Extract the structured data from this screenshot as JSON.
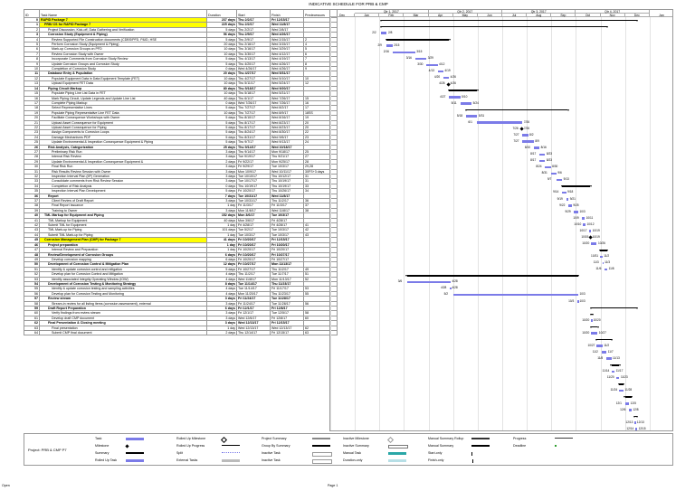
{
  "page_title": "INDICATIVE SCHEDULE FOR PRB & CMP",
  "columns": {
    "id": "ID",
    "name": "Task Name",
    "duration": "Duration",
    "start": "Start",
    "finish": "Finish",
    "predecessors": "Predecessors"
  },
  "timeline": {
    "quarters": [
      "Qtr 1, 2017",
      "Qtr 2, 2017",
      "Qtr 3, 2017",
      "Qtr 4, 2017"
    ],
    "months": [
      "Dec",
      "Jan",
      "Feb",
      "Mar",
      "Apr",
      "May",
      "Jun",
      "Jul",
      "Aug",
      "Sep",
      "Oct",
      "Nov",
      "Dec",
      "Jan"
    ]
  },
  "tasks": [
    {
      "id": "0",
      "name": "RAPID Package 7",
      "duration": "237 days",
      "start": "Thu 2/2/17",
      "finish": "Fri 12/15/17",
      "pred": "",
      "level": 0,
      "summary": true,
      "hl": true
    },
    {
      "id": "1",
      "name": "PRB/ CS for RAPID Package 7",
      "duration": "225 days",
      "start": "Thu 2/2/17",
      "finish": "Wed 11/8/17",
      "pred": "",
      "level": 1,
      "summary": true,
      "hl": true
    },
    {
      "id": "2",
      "name": "Project Discussion, Kick-off, Data Gathering and Verification",
      "duration": "5 days",
      "start": "Thu 2/2/17",
      "finish": "Wed 2/8/17",
      "pred": "",
      "level": 2
    },
    {
      "id": "3",
      "name": "Corrosion Study (Equipment & Piping)",
      "duration": "56 days",
      "start": "Thu 2/9/17",
      "finish": "Wed 4/26/17",
      "pred": "",
      "level": 2,
      "summary": true
    },
    {
      "id": "4",
      "name": "Review Supported File Construction documents (CDBS/PFD, P&ID, HSE",
      "duration": "5 days",
      "start": "Thu 2/9/17",
      "finish": "Wed 2/15/17",
      "pred": "2",
      "level": 3
    },
    {
      "id": "5",
      "name": "Perform Corrosion Study (Equipment & Piping)",
      "duration": "20 days",
      "start": "Thu 2/16/17",
      "finish": "Wed 3/15/17",
      "pred": "4",
      "level": 3
    },
    {
      "id": "6",
      "name": "Mark-up Corrosion Groups on PFD",
      "duration": "10 days",
      "start": "Thu 3/16/17",
      "finish": "Wed 3/29/17",
      "pred": "5",
      "level": 3
    },
    {
      "id": "7",
      "name": "Review Corrosion Study with Owner",
      "duration": "10 days",
      "start": "Thu 3/30/17",
      "finish": "Wed 4/12/17",
      "pred": "6",
      "level": 3
    },
    {
      "id": "8",
      "name": "Incorporate Comments from Corrosion Study Review",
      "duration": "5 days",
      "start": "Thu 4/13/17",
      "finish": "Wed 4/19/17",
      "pred": "7",
      "level": 3
    },
    {
      "id": "9",
      "name": "Update Corrosion Groups and Corrosion Study",
      "duration": "5 days",
      "start": "Thu 4/20/17",
      "finish": "Wed 4/26/17",
      "pred": "8",
      "level": 3
    },
    {
      "id": "10",
      "name": "Completion of Corrosion Study",
      "duration": "0 days",
      "start": "Wed 4/26/17",
      "finish": "Wed 4/26/17",
      "pred": "9",
      "level": 3
    },
    {
      "id": "11",
      "name": "Database Entry & Population",
      "duration": "20 days",
      "start": "Thu 4/27/17",
      "finish": "Wed 5/31/17",
      "pred": "",
      "level": 2,
      "summary": true
    },
    {
      "id": "12",
      "name": "Populate Equipment Data in Data Equipment Template (FET)",
      "duration": "10 days",
      "start": "Thu 4/27/17",
      "finish": "Wed 5/10/17",
      "pred": "10",
      "level": 3
    },
    {
      "id": "13",
      "name": "Upload Equipment FET Data",
      "duration": "10 days",
      "start": "Thu 5/11/17",
      "finish": "Wed 5/24/17",
      "pred": "12",
      "level": 3
    },
    {
      "id": "14",
      "name": "Piping Circuit Markup",
      "duration": "80 days",
      "start": "Thu 5/18/17",
      "finish": "Wed 9/20/17",
      "pred": "",
      "level": 2,
      "summary": true
    },
    {
      "id": "15",
      "name": "Populate Piping Line List Data in FET",
      "duration": "10 days",
      "start": "Thu 5/18/17",
      "finish": "Wed 5/31/17",
      "pred": "",
      "level": 3
    },
    {
      "id": "16",
      "name": "Mark Piping Circuit, Update Legends and Update Line List",
      "duration": "40 days",
      "start": "Thu 6/1/17",
      "finish": "Wed 7/26/17",
      "pred": "15",
      "level": 3
    },
    {
      "id": "17",
      "name": "Complete Piping Markup",
      "duration": "0 days",
      "start": "Wed 7/26/17",
      "finish": "Wed 7/26/17",
      "pred": "16",
      "level": 3
    },
    {
      "id": "18",
      "name": "Select Representative Lines",
      "duration": "5 days",
      "start": "Thu 7/27/17",
      "finish": "Wed 8/2/17",
      "pred": "17",
      "level": 3
    },
    {
      "id": "19",
      "name": "Populate Piping Representative Line FET Data",
      "duration": "10 days",
      "start": "Thu 7/27/17",
      "finish": "Wed 8/9/17",
      "pred": "18SS",
      "level": 3
    },
    {
      "id": "20",
      "name": "Facilitate Consequence Workshops with Owner",
      "duration": "5 days",
      "start": "Thu 8/10/17",
      "finish": "Wed 8/16/17",
      "pred": "19",
      "level": 3
    },
    {
      "id": "21",
      "name": "Upload Asset Consequence for Equipment",
      "duration": "5 days",
      "start": "Thu 8/17/17",
      "finish": "Wed 8/23/17",
      "pred": "20",
      "level": 3
    },
    {
      "id": "22",
      "name": "Upload Asset Consequence for Piping",
      "duration": "5 days",
      "start": "Thu 8/17/17",
      "finish": "Wed 8/23/17",
      "pred": "20",
      "level": 3
    },
    {
      "id": "23",
      "name": "Assign Components to Corrosion Loops",
      "duration": "5 days",
      "start": "Thu 8/24/17",
      "finish": "Wed 8/30/17",
      "pred": "22",
      "level": 3
    },
    {
      "id": "24",
      "name": "Damage Mechanisms PDF",
      "duration": "5 days",
      "start": "Thu 8/31/17",
      "finish": "Wed 9/6/17",
      "pred": "23",
      "level": 3
    },
    {
      "id": "25",
      "name": "Update Environmental & Inspection Consequence Equipment & Piping",
      "duration": "5 days",
      "start": "Thu 9/7/17",
      "finish": "Wed 9/13/17",
      "pred": "24",
      "level": 3
    },
    {
      "id": "26",
      "name": "Risk Analysis, Categorization",
      "duration": "25 days",
      "start": "Thu 9/14/17",
      "finish": "Wed 10/18/17",
      "pred": "",
      "level": 2,
      "summary": true
    },
    {
      "id": "27",
      "name": "Preliminary Risk Run",
      "duration": "3 days",
      "start": "Thu 9/14/17",
      "finish": "Mon 9/18/17",
      "pred": "25",
      "level": 3
    },
    {
      "id": "28",
      "name": "Internal Risk Review",
      "duration": "3 days",
      "start": "Tue 9/19/17",
      "finish": "Thu 9/21/17",
      "pred": "27",
      "level": 3
    },
    {
      "id": "29",
      "name": "Update Environmental & Inspection Consequence Equipment &",
      "duration": "2 days",
      "start": "Fri 9/22/17",
      "finish": "Mon 9/25/17",
      "pred": "28",
      "level": 3
    },
    {
      "id": "30",
      "name": "Final Risk Run",
      "duration": "3 days",
      "start": "Fri 9/29/17",
      "finish": "Tue 10/3/17",
      "pred": "29,28",
      "level": 3
    },
    {
      "id": "31",
      "name": "Risk Results Review Session with Owner",
      "duration": "3 days",
      "start": "Mon 10/9/17",
      "finish": "Wed 10/11/17",
      "pred": "30FS+3 days",
      "level": 3
    },
    {
      "id": "32",
      "name": "Inspection Interval Plan (IIP) Generation",
      "duration": "3 days",
      "start": "Tue 10/10/17",
      "finish": "Thu 10/12/17",
      "pred": "31",
      "level": 3
    },
    {
      "id": "33",
      "name": "Consolidate comments from Risk Review Session",
      "duration": "3 days",
      "start": "Tue 10/17/17",
      "finish": "Thu 10/19/17",
      "pred": "31",
      "level": 3
    },
    {
      "id": "34",
      "name": "Completion of Risk Analysis",
      "duration": "0 days",
      "start": "Thu 10/19/17",
      "finish": "Thu 10/19/17",
      "pred": "33",
      "level": 3
    },
    {
      "id": "35",
      "name": "Inspection Interval Plan Development",
      "duration": "5 days",
      "start": "Fri 10/20/17",
      "finish": "Thu 10/26/17",
      "pred": "34",
      "level": 3
    },
    {
      "id": "36",
      "name": "Report",
      "duration": "7 days",
      "start": "Tue 10/31/17",
      "finish": "Wed 11/8/17",
      "pred": "",
      "level": 2,
      "summary": true
    },
    {
      "id": "37",
      "name": "Client Review of Draft Report",
      "duration": "3 days",
      "start": "Tue 10/31/17",
      "finish": "Thu 11/2/17",
      "pred": "36",
      "level": 3
    },
    {
      "id": "38",
      "name": "Final Report Issuance",
      "duration": "1 day",
      "start": "Fri 11/3/17",
      "finish": "Fri 11/3/17",
      "pred": "37",
      "level": 3
    },
    {
      "id": "39",
      "name": "Training to Owner",
      "duration": "3 days",
      "start": "Mon 11/6/17",
      "finish": "Wed 11/8/17",
      "pred": "38",
      "level": 3
    },
    {
      "id": "40",
      "name": "TML Markup for Equipment and Piping",
      "duration": "152 days",
      "start": "Mon 3/6/17",
      "finish": "Tue 10/3/17",
      "pred": "",
      "level": 1,
      "summary": true
    },
    {
      "id": "41",
      "name": "TML Markup for Equipment",
      "duration": "40 days",
      "start": "Mon 3/6/17",
      "finish": "Fri 4/28/17",
      "pred": "",
      "level": 2
    },
    {
      "id": "42",
      "name": "Submit TML for Equipment",
      "duration": "1 day",
      "start": "Fri 4/28/17",
      "finish": "Fri 4/28/17",
      "pred": "41",
      "level": 2
    },
    {
      "id": "43",
      "name": "TML Mark-up for Piping",
      "duration": "101 days",
      "start": "Tue 5/2/17",
      "finish": "Tue 10/3/17",
      "pred": "42",
      "level": 2
    },
    {
      "id": "44",
      "name": "Submit TML Mark-up for Piping",
      "duration": "1 day",
      "start": "Tue 10/3/17",
      "finish": "Tue 10/3/17",
      "pred": "43",
      "level": 2
    },
    {
      "id": "45",
      "name": "Corrosion Management Plan (CMP) for Package 7",
      "duration": "41 days",
      "start": "Fri 10/20/17",
      "finish": "Fri 12/15/17",
      "pred": "",
      "level": 1,
      "summary": true,
      "hl": true
    },
    {
      "id": "46",
      "name": "Project preparation",
      "duration": "1 day",
      "start": "Fri 10/20/17",
      "finish": "Fri 10/20/17",
      "pred": "",
      "level": 2,
      "summary": true
    },
    {
      "id": "47",
      "name": "Internal Review and Preparation",
      "duration": "1 day",
      "start": "Fri 10/20/17",
      "finish": "Fri 10/20/17",
      "pred": "",
      "level": 3
    },
    {
      "id": "48",
      "name": "Review/Development of Corrosion Groups",
      "duration": "6 days",
      "start": "Fri 10/20/17",
      "finish": "Fri 10/27/17",
      "pred": "",
      "level": 2,
      "summary": true
    },
    {
      "id": "49",
      "name": "Develop corrosion mapping",
      "duration": "6 days",
      "start": "Fri 10/20/17",
      "finish": "Fri 10/27/17",
      "pred": "",
      "level": 3
    },
    {
      "id": "50",
      "name": "Development of Corrosion Control & Mitigation Plan",
      "duration": "12 days",
      "start": "Fri 10/27/17",
      "finish": "Mon 11/13/17",
      "pred": "",
      "level": 2,
      "summary": true
    },
    {
      "id": "51",
      "name": "Identify & update corrosion control and mitigation",
      "duration": "5 days",
      "start": "Fri 10/27/17",
      "finish": "Thu 11/2/17",
      "pred": "49",
      "level": 3
    },
    {
      "id": "52",
      "name": "Develop plan for Corrosion Control and Mitigation",
      "duration": "4 days",
      "start": "Thu 11/2/17",
      "finish": "Tue 11/7/17",
      "pred": "51",
      "level": 3
    },
    {
      "id": "53",
      "name": "Identify associated Integrity Operating Window (IOW)",
      "duration": "4 days",
      "start": "Wed 11/8/17",
      "finish": "Mon 11/13/17",
      "pred": "52",
      "level": 3
    },
    {
      "id": "54",
      "name": "Development of Corrosion Testing & Monitoring Strategy",
      "duration": "8 days",
      "start": "Tue 11/14/17",
      "finish": "Thu 11/23/17",
      "pred": "",
      "level": 2,
      "summary": true
    },
    {
      "id": "55",
      "name": "Identify & update corrosion testing and sampling activities",
      "duration": "4 days",
      "start": "Tue 11/14/17",
      "finish": "Fri 11/17/17",
      "pred": "53",
      "level": 3
    },
    {
      "id": "56",
      "name": "Develop plan for Corrosion Testing and Monitoring",
      "duration": "4 days",
      "start": "Mon 11/20/17",
      "finish": "Thu 11/23/17",
      "pred": "55",
      "level": 3
    },
    {
      "id": "57",
      "name": "Review stream",
      "duration": "3 days",
      "start": "Fri 11/24/17",
      "finish": "Tue 11/28/17",
      "pred": "",
      "level": 2,
      "summary": true
    },
    {
      "id": "58",
      "name": "Stream-in review for all listing items (corrosion assessment), external",
      "duration": "3 days",
      "start": "Fri 11/24/17",
      "finish": "Tue 11/28/17",
      "pred": "56",
      "level": 3
    },
    {
      "id": "59",
      "name": "Draft Report Preparation",
      "duration": "6 days",
      "start": "Fri 12/1/17",
      "finish": "Fri 12/8/17",
      "pred": "",
      "level": 2,
      "summary": true
    },
    {
      "id": "60",
      "name": "Verify findings from review stream",
      "duration": "3 days",
      "start": "Fri 12/1/17",
      "finish": "Tue 12/5/17",
      "pred": "58",
      "level": 3
    },
    {
      "id": "61",
      "name": "Develop draft CMP document",
      "duration": "3 days",
      "start": "Wed 12/6/17",
      "finish": "Fri 12/8/17",
      "pred": "60",
      "level": 3
    },
    {
      "id": "62",
      "name": "Final Presentation & Closing meeting",
      "duration": "3 days",
      "start": "Wed 12/13/17",
      "finish": "Fri 12/15/17",
      "pred": "",
      "level": 2,
      "summary": true
    },
    {
      "id": "63",
      "name": "Final presentation",
      "duration": "1 day",
      "start": "Wed 12/13/17",
      "finish": "Wed 12/13/17",
      "pred": "62",
      "level": 3
    },
    {
      "id": "64",
      "name": "Submit CMP final document",
      "duration": "2 days",
      "start": "Thu 12/14/17",
      "finish": "Fri 12/15/17",
      "pred": "63",
      "level": 3
    }
  ],
  "legend": {
    "project_label": "Project: PRB & CMP P7",
    "items": [
      [
        "Task",
        "Rolled Up Milestone",
        "Project Summary",
        "Inactive Milestone",
        "Manual Summary Rollup",
        "Progress"
      ],
      [
        "Milestone",
        "Rolled Up Progress",
        "Group By Summary",
        "Inactive Summary",
        "Manual Summary",
        "Deadline"
      ],
      [
        "Summary",
        "Split",
        "Inactive Task",
        "Manual Task",
        "Start-only",
        ""
      ],
      [
        "Rolled Up Task",
        "External Tasks",
        "Inactive Task",
        "Duration-only",
        "Finish-only",
        ""
      ]
    ]
  },
  "footer": {
    "left": "Open",
    "center": "Page 1"
  },
  "colors": {
    "task": "#7b7be8",
    "summary": "#000000",
    "highlight": "#ffff00",
    "progress": "#3a3a3a",
    "deadline": "#2e9e2e",
    "manual_task": "#2aa7a7"
  }
}
